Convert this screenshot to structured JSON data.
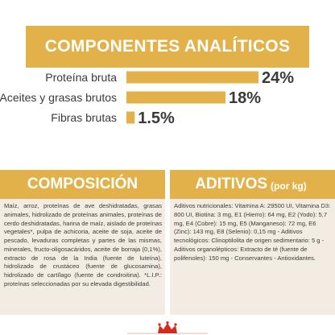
{
  "brand": {
    "gold": "#e2b14a",
    "panel_bg": "#f3ece2",
    "text": "#3a3a3a",
    "logo_red": "#d52b1e"
  },
  "analytics": {
    "title": "COMPONENTES ANALÍTICOS"
  },
  "chart_data": {
    "type": "bar",
    "orientation": "horizontal",
    "title": "COMPONENTES ANALÍTICOS",
    "categories": [
      "Proteína bruta",
      "Aceites y grasas brutos",
      "Fibras brutas"
    ],
    "values": [
      24,
      18,
      1.5
    ],
    "value_labels": [
      "24%",
      "18%",
      "1.5%"
    ],
    "unit": "%",
    "color": "#e2b14a"
  },
  "composition": {
    "title": "COMPOSICIÓN",
    "text": "Maíz, arroz, proteínas de ave deshidratadas, grasas animales, hidrolizado de proteínas animales, proteínas de cerdo deshidratadas, harina de maíz, aislado de proteínas vegetales*, pulpa de achicoria, aceite de soja, aceite de pescado, levaduras completas y partes de las mismas, minerales, fructo-oligosacáridos, aceite de borraja (0,1%), extracto de rosa de la India (fuente de luteína), hidrolizado de crustáceo (fuente de glucosamina), hidrolizado de cartílago (fuente de condroitina). *L.I.P.: proteínas seleccionadas por su elevada digestibilidad."
  },
  "additives": {
    "title": "ADITIVOS",
    "unit": "(por kg)",
    "text": "Aditivos nutricionales: Vitamina A: 29500 UI, Vitamina D3: 800 UI, Biotina: 3 mg, E1 (Hierro): 64 mg, E2 (Yodo): 5,7 mg, E4 (Cobre): 15 mg, E5 (Manganeso): 72 mg, E6 (Zinc): 143 mg, E8 (Selenio): 0,15 mg - Aditivos tecnológicos: Clinoptilolita de origen sedimentario: 5 g - Aditivos organolépticos: Extracto de té (fuente de polifenoles): 150 mg - Conservantes - Antioxidantes."
  }
}
